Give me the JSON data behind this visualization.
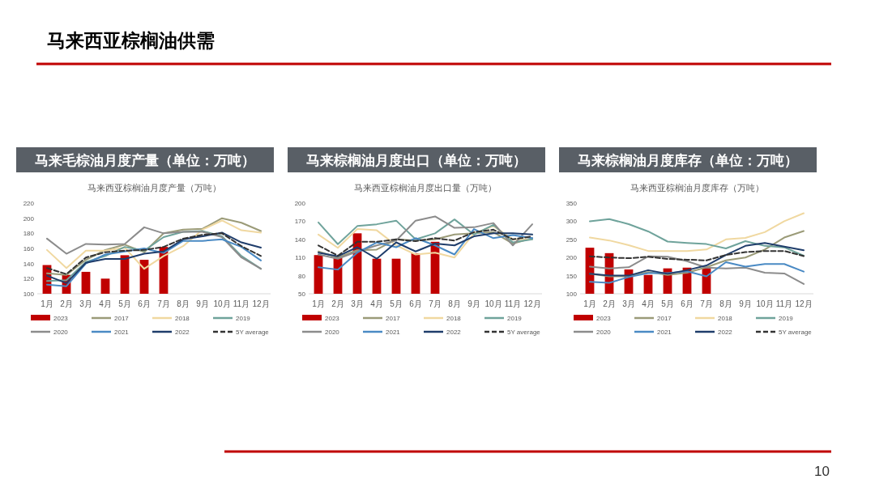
{
  "chart_data": [
    {
      "type": "line",
      "title": "马来毛棕油月度产量（单位：万吨）",
      "subtitle": "马来西亚棕榈油月度产量（万吨）",
      "annotations": [
        "马来西亚棕榈油供需"
      ],
      "categories": [
        "1月",
        "2月",
        "3月",
        "4月",
        "5月",
        "6月",
        "7月",
        "8月",
        "9月",
        "10月",
        "11月",
        "12月"
      ],
      "ylim": [
        100,
        220
      ],
      "yticks": [
        100,
        120,
        140,
        160,
        180,
        200,
        220
      ],
      "legend": "bottom",
      "series": [
        {
          "name": "2023",
          "type": "bar",
          "color": "#c00000",
          "values": [
            138,
            125,
            129,
            120,
            151,
            145,
            162,
            null,
            null,
            null,
            null,
            null
          ]
        },
        {
          "name": "2017",
          "color": "#9b9b78",
          "values": [
            127,
            125,
            145,
            158,
            165,
            155,
            180,
            185,
            186,
            200,
            194,
            183
          ]
        },
        {
          "name": "2018",
          "color": "#f0d8a0",
          "values": [
            158,
            134,
            157,
            157,
            161,
            133,
            150,
            163,
            185,
            197,
            184,
            181
          ]
        },
        {
          "name": "2019",
          "color": "#6fa39b",
          "values": [
            117,
            118,
            142,
            150,
            162,
            157,
            175,
            182,
            183,
            176,
            150,
            133
          ]
        },
        {
          "name": "2020",
          "color": "#8c8c8c",
          "values": [
            173,
            153,
            166,
            165,
            166,
            188,
            180,
            182,
            182,
            175,
            148,
            133
          ]
        },
        {
          "name": "2021",
          "color": "#4a8ac4",
          "values": [
            112,
            110,
            140,
            152,
            156,
            160,
            154,
            170,
            170,
            172,
            162,
            144
          ]
        },
        {
          "name": "2022",
          "color": "#1f3d6b",
          "values": [
            124,
            114,
            141,
            146,
            146,
            153,
            156,
            172,
            176,
            181,
            168,
            161
          ]
        },
        {
          "name": "5Y average",
          "color": "#333333",
          "line_style": "dashed",
          "values": [
            134,
            126,
            148,
            155,
            157,
            158,
            162,
            173,
            178,
            180,
            163,
            150
          ]
        }
      ]
    },
    {
      "type": "line",
      "title": "马来棕榈油月度出口（单位：万吨）",
      "subtitle": "马来西亚棕榈油月度出口量（万吨）",
      "categories": [
        "1月",
        "2月",
        "3月",
        "4月",
        "5月",
        "6月",
        "7月",
        "8月",
        "9月",
        "10月",
        "11月",
        "12月"
      ],
      "ylim": [
        50,
        200
      ],
      "yticks": [
        50,
        80,
        110,
        140,
        170,
        200
      ],
      "legend": "bottom",
      "series": [
        {
          "name": "2023",
          "type": "bar",
          "color": "#c00000",
          "values": [
            114,
            110,
            150,
            108,
            108,
            117,
            136,
            null,
            null,
            null,
            null,
            null
          ]
        },
        {
          "name": "2017",
          "color": "#9b9b78",
          "values": [
            120,
            110,
            122,
            123,
            140,
            138,
            140,
            148,
            150,
            152,
            133,
            142
          ]
        },
        {
          "name": "2018",
          "color": "#f0d8a0",
          "values": [
            148,
            126,
            157,
            155,
            130,
            115,
            118,
            110,
            150,
            162,
            140,
            140
          ]
        },
        {
          "name": "2019",
          "color": "#6fa39b",
          "values": [
            168,
            132,
            162,
            165,
            171,
            140,
            150,
            173,
            148,
            164,
            135,
            140
          ]
        },
        {
          "name": "2020",
          "color": "#8c8c8c",
          "values": [
            115,
            108,
            120,
            130,
            138,
            171,
            178,
            159,
            160,
            167,
            130,
            165
          ]
        },
        {
          "name": "2021",
          "color": "#4a8ac4",
          "values": [
            94,
            90,
            118,
            135,
            127,
            142,
            130,
            115,
            157,
            142,
            147,
            142
          ]
        },
        {
          "name": "2022",
          "color": "#1f3d6b",
          "values": [
            118,
            112,
            127,
            108,
            135,
            120,
            133,
            130,
            145,
            150,
            150,
            148
          ]
        },
        {
          "name": "5Y average",
          "color": "#333333",
          "line_style": "dashed",
          "values": [
            130,
            113,
            136,
            136,
            140,
            137,
            142,
            138,
            152,
            156,
            140,
            145
          ]
        }
      ]
    },
    {
      "type": "line",
      "title": "马来棕榈油月度库存（单位：万吨）",
      "subtitle": "马来西亚棕榈油月度库存（万吨）",
      "annotations": [
        "10"
      ],
      "categories": [
        "1月",
        "2月",
        "3月",
        "4月",
        "5月",
        "6月",
        "7月",
        "8月",
        "9月",
        "10月",
        "11月",
        "12月"
      ],
      "ylim": [
        100,
        350
      ],
      "yticks": [
        100,
        150,
        200,
        250,
        300,
        350
      ],
      "legend": "bottom",
      "series": [
        {
          "name": "2023",
          "type": "bar",
          "color": "#c00000",
          "values": [
            227,
            212,
            167,
            152,
            170,
            172,
            172,
            null,
            null,
            null,
            null,
            null
          ]
        },
        {
          "name": "2017",
          "color": "#9b9b78",
          "values": [
            155,
            148,
            148,
            160,
            152,
            158,
            173,
            192,
            200,
            222,
            255,
            273
          ]
        },
        {
          "name": "2018",
          "color": "#f0d8a0",
          "values": [
            255,
            247,
            234,
            218,
            218,
            218,
            222,
            250,
            254,
            270,
            300,
            322
          ]
        },
        {
          "name": "2019",
          "color": "#6fa39b",
          "values": [
            300,
            306,
            292,
            272,
            244,
            240,
            237,
            225,
            245,
            232,
            228,
            205
          ]
        },
        {
          "name": "2020",
          "color": "#8c8c8c",
          "values": [
            175,
            170,
            173,
            203,
            202,
            190,
            172,
            170,
            172,
            158,
            156,
            127
          ]
        },
        {
          "name": "2021",
          "color": "#4a8ac4",
          "values": [
            133,
            130,
            146,
            157,
            157,
            162,
            148,
            187,
            175,
            182,
            182,
            161
          ]
        },
        {
          "name": "2022",
          "color": "#1f3d6b",
          "values": [
            155,
            150,
            150,
            165,
            155,
            165,
            178,
            207,
            232,
            240,
            230,
            220
          ]
        },
        {
          "name": "5Y average",
          "color": "#333333",
          "line_style": "dashed",
          "values": [
            203,
            200,
            198,
            202,
            196,
            194,
            192,
            207,
            215,
            218,
            218,
            204
          ]
        }
      ]
    }
  ]
}
